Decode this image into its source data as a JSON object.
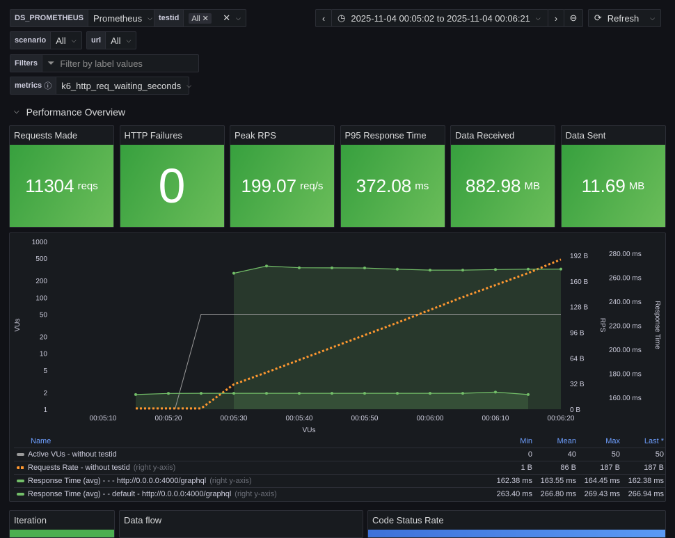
{
  "vars": {
    "ds": {
      "label": "DS_PROMETHEUS",
      "value": "Prometheus"
    },
    "testid": {
      "label": "testid",
      "value": "All"
    },
    "scenario": {
      "label": "scenario",
      "value": "All"
    },
    "url": {
      "label": "url",
      "value": "All"
    },
    "filters": {
      "label": "Filters",
      "placeholder": "Filter by label values"
    },
    "metrics": {
      "label": "metrics",
      "value": "k6_http_req_waiting_seconds"
    }
  },
  "time": {
    "range": "2025-11-04 00:05:02 to 2025-11-04 00:06:21",
    "refresh": "Refresh"
  },
  "row_title": "Performance Overview",
  "stats": [
    {
      "title": "Requests Made",
      "value": "11304",
      "unit": "reqs"
    },
    {
      "title": "HTTP Failures",
      "value": "0",
      "unit": ""
    },
    {
      "title": "Peak RPS",
      "value": "199.07",
      "unit": "req/s"
    },
    {
      "title": "P95 Response Time",
      "value": "372.08",
      "unit": "ms"
    },
    {
      "title": "Data Received",
      "value": "882.98",
      "unit": "MB"
    },
    {
      "title": "Data Sent",
      "value": "11.69",
      "unit": "MB"
    }
  ],
  "chart_data": {
    "type": "line",
    "xlabel": "VUs",
    "ylabel_left": "VUs",
    "ylabel_right1": "RPS",
    "ylabel_right2": "Response Time",
    "x_ticks": [
      "00:05:10",
      "00:05:20",
      "00:05:30",
      "00:05:40",
      "00:05:50",
      "00:06:00",
      "00:06:10",
      "00:06:20"
    ],
    "y_left_ticks": [
      "1000",
      "500",
      "200",
      "100",
      "50",
      "20",
      "10",
      "5",
      "2",
      "1"
    ],
    "y_right1_ticks": [
      "192 B",
      "160 B",
      "128 B",
      "96 B",
      "64 B",
      "32 B",
      "0 B"
    ],
    "y_right2_ticks": [
      "280.00 ms",
      "260.00 ms",
      "240.00 ms",
      "220.00 ms",
      "200.00 ms",
      "180.00 ms",
      "160.00 ms"
    ],
    "series": [
      {
        "name": "Active VUs - without testid",
        "axis": "left",
        "color": "#9a9a9a",
        "x": [
          81,
          85,
          140
        ],
        "values": [
          1,
          50,
          50
        ]
      },
      {
        "name": "Requests Rate - without testid",
        "axis": "right1",
        "color": "#ff9830",
        "x": [
          75,
          85,
          90,
          95,
          105,
          115,
          125,
          135,
          140
        ],
        "values": [
          1,
          1,
          31,
          46,
          77,
          108,
          140,
          170,
          187
        ]
      },
      {
        "name": "Response Time (avg) - - - http://0.0.0.0:4000/graphql",
        "axis": "right2",
        "color": "#73bf69",
        "x": [
          75,
          80,
          85,
          90,
          95,
          100,
          105,
          110,
          115,
          120,
          125,
          130,
          135
        ],
        "values": [
          162.4,
          163.3,
          163.4,
          163.4,
          163.4,
          163.4,
          163.4,
          163.4,
          163.4,
          163.4,
          163.4,
          164.4,
          162.4
        ]
      },
      {
        "name": "Response Time (avg) - - default - http://0.0.0.0:4000/graphql",
        "axis": "right2",
        "color": "#73bf69",
        "x": [
          90,
          95,
          100,
          105,
          110,
          115,
          120,
          125,
          130,
          135,
          140
        ],
        "values": [
          263.4,
          269.4,
          268.0,
          267.9,
          267.8,
          266.8,
          266.0,
          266.0,
          266.5,
          266.8,
          266.9
        ]
      }
    ]
  },
  "legend": {
    "headers": [
      "Name",
      "Min",
      "Mean",
      "Max",
      "Last *"
    ],
    "rows": [
      {
        "name": "Active VUs - without testid",
        "suffix": "",
        "vals": [
          "0",
          "40",
          "50",
          "50"
        ]
      },
      {
        "name": "Requests Rate - without testid",
        "suffix": "(right y-axis)",
        "vals": [
          "1 B",
          "86 B",
          "187 B",
          "187 B"
        ]
      },
      {
        "name": "Response Time (avg) - - - http://0.0.0.0:4000/graphql",
        "suffix": "(right y-axis)",
        "vals": [
          "162.38 ms",
          "163.55 ms",
          "164.45 ms",
          "162.38 ms"
        ]
      },
      {
        "name": "Response Time (avg) - - default - http://0.0.0.0:4000/graphql",
        "suffix": "(right y-axis)",
        "vals": [
          "263.40 ms",
          "266.80 ms",
          "269.43 ms",
          "266.94 ms"
        ]
      }
    ]
  },
  "bottom": {
    "iteration": "Iteration",
    "dataflow": "Data flow",
    "codestatus": "Code Status Rate"
  }
}
